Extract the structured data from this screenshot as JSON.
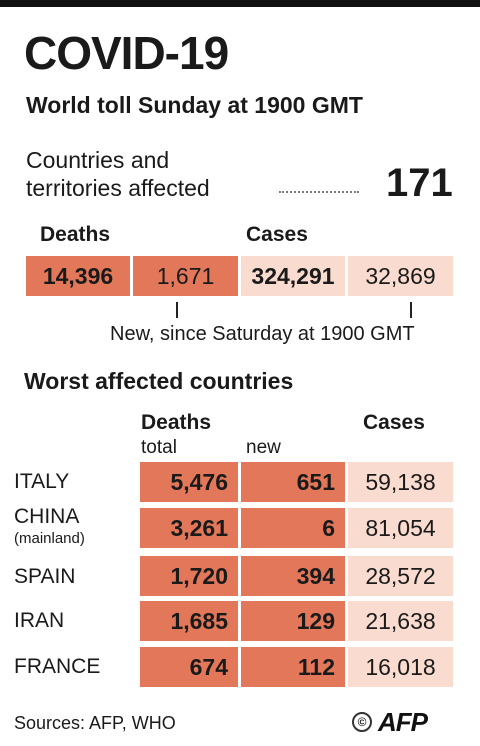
{
  "title": "COVID-19",
  "subtitle": "World toll Sunday at 1900 GMT",
  "countries_affected": {
    "label_line1": "Countries and",
    "label_line2": "territories affected",
    "value": "171"
  },
  "summary": {
    "deaths_label": "Deaths",
    "cases_label": "Cases",
    "deaths_total": "14,396",
    "deaths_new": "1,671",
    "cases_total": "324,291",
    "cases_new": "32,869",
    "note": "New, since Saturday at 1900 GMT"
  },
  "worst_affected": {
    "title": "Worst affected countries",
    "col_deaths": "Deaths",
    "col_total": "total",
    "col_new": "new",
    "col_cases": "Cases",
    "rows": [
      {
        "country": "ITALY",
        "sub": "",
        "deaths_total": "5,476",
        "deaths_new": "651",
        "cases": "59,138"
      },
      {
        "country": "CHINA",
        "sub": "(mainland)",
        "deaths_total": "3,261",
        "deaths_new": "6",
        "cases": "81,054"
      },
      {
        "country": "SPAIN",
        "sub": "",
        "deaths_total": "1,720",
        "deaths_new": "394",
        "cases": "28,572"
      },
      {
        "country": "IRAN",
        "sub": "",
        "deaths_total": "1,685",
        "deaths_new": "129",
        "cases": "21,638"
      },
      {
        "country": "FRANCE",
        "sub": "",
        "deaths_total": "674",
        "deaths_new": "112",
        "cases": "16,018"
      }
    ]
  },
  "footer": {
    "sources": "Sources: AFP, WHO",
    "logo_text": "AFP",
    "copyright_symbol": "©"
  },
  "colors": {
    "deaths_total": "#e3775a",
    "deaths_new": "#ef9f85",
    "cases": "#f9dccf"
  }
}
